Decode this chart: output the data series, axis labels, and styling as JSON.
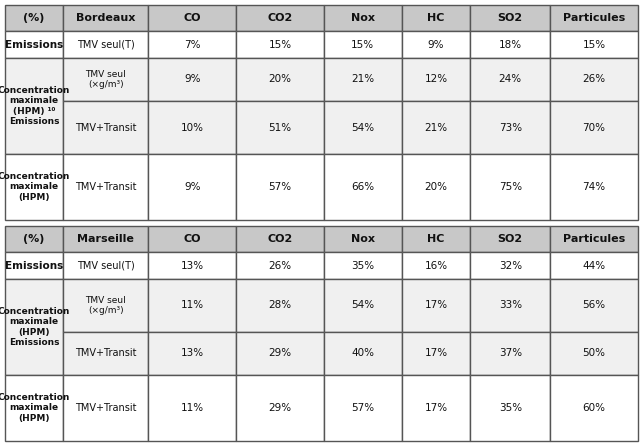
{
  "header_bordeaux": [
    "(%)",
    "Bordeaux",
    "CO",
    "CO2",
    "Nox",
    "HC",
    "SO2",
    "Particules"
  ],
  "header_marseille": [
    "(%)",
    "Marseille",
    "CO",
    "CO2",
    "Nox",
    "HC",
    "SO2",
    "Particules"
  ],
  "bordeaux_rows": [
    {
      "row_label": "Emissions",
      "sub_label": "TMV seul(T)",
      "values": [
        "7%",
        "15%",
        "15%",
        "9%",
        "18%",
        "15%"
      ]
    },
    {
      "row_label": "Concentration\nmaximale\n(HPM) ¹⁰\nEmissions",
      "sub_label": "TMV seul\n(×g/m³)",
      "values": [
        "9%",
        "20%",
        "21%",
        "12%",
        "24%",
        "26%"
      ]
    },
    {
      "row_label": "",
      "sub_label": "TMV+Transit",
      "values": [
        "10%",
        "51%",
        "54%",
        "21%",
        "73%",
        "70%"
      ]
    },
    {
      "row_label": "Concentration\nmaximale\n(HPM)",
      "sub_label": "TMV+Transit",
      "values": [
        "9%",
        "57%",
        "66%",
        "20%",
        "75%",
        "74%"
      ]
    }
  ],
  "marseille_rows": [
    {
      "row_label": "Emissions",
      "sub_label": "TMV seul(T)",
      "values": [
        "13%",
        "26%",
        "35%",
        "16%",
        "32%",
        "44%"
      ]
    },
    {
      "row_label": "Concentration\nmaximale\n(HPM)\nEmissions",
      "sub_label": "TMV seul\n(×g/m³)",
      "values": [
        "11%",
        "28%",
        "54%",
        "17%",
        "33%",
        "56%"
      ]
    },
    {
      "row_label": "",
      "sub_label": "TMV+Transit",
      "values": [
        "13%",
        "29%",
        "40%",
        "17%",
        "37%",
        "50%"
      ]
    },
    {
      "row_label": "Concentration\nmaximale\n(HPM)",
      "sub_label": "TMV+Transit",
      "values": [
        "11%",
        "29%",
        "57%",
        "17%",
        "35%",
        "60%"
      ]
    }
  ],
  "header_bg": "#c8c8c8",
  "row_bg_light": "#f0f0f0",
  "row_bg_white": "#ffffff",
  "border_color": "#555555",
  "text_color": "#111111"
}
